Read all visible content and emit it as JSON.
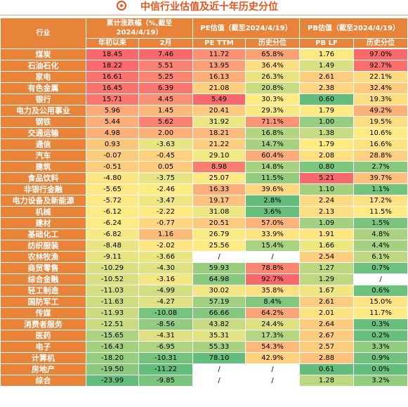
{
  "title": "中信行业估值及近十年历史分位",
  "headers": {
    "industry": "行业",
    "group_change": "累计涨跌幅（%,截至2024/4/19）",
    "group_pe": "PE估值（截至2024/4/19）",
    "group_pb": "PB估值（截至2024/4/19）",
    "sub": [
      "年初以来",
      "2月",
      "PE  TTM",
      "历史分位",
      "PB  LF",
      "历史分位"
    ]
  },
  "colors": {
    "header_bg": "#e8833a",
    "title_color": "#e8531c",
    "scale_red": "#f8696b",
    "scale_yellow": "#ffeb84",
    "scale_green": "#63be7b"
  },
  "chart_data": {
    "type": "table",
    "columns": [
      "行业",
      "年初以来",
      "2月",
      "PE TTM",
      "PE历史分位",
      "PB LF",
      "PB历史分位"
    ],
    "rows": [
      {
        "industry": "煤炭",
        "ytd": "18.45",
        "m2": "7.46",
        "pe": "11.72",
        "pe_pct": "65.8%",
        "pb": "1.76",
        "pb_pct": "97.0%"
      },
      {
        "industry": "石油石化",
        "ytd": "18.22",
        "m2": "5.51",
        "pe": "13.95",
        "pe_pct": "36.4%",
        "pb": "1.49",
        "pb_pct": "92.7%"
      },
      {
        "industry": "家电",
        "ytd": "16.61",
        "m2": "5.25",
        "pe": "16.13",
        "pe_pct": "26.3%",
        "pb": "2.61",
        "pb_pct": "22.1%"
      },
      {
        "industry": "有色金属",
        "ytd": "16.45",
        "m2": "6.39",
        "pe": "21.08",
        "pe_pct": "20.8%",
        "pb": "2.38",
        "pb_pct": "32.4%"
      },
      {
        "industry": "银行",
        "ytd": "15.71",
        "m2": "4.45",
        "pe": "5.49",
        "pe_pct": "30.3%",
        "pb": "0.60",
        "pb_pct": "19.3%"
      },
      {
        "industry": "电力及公用事业",
        "ytd": "5.96",
        "m2": "1.45",
        "pe": "20.41",
        "pe_pct": "29.3%",
        "pb": "1.79",
        "pb_pct": "49.2%"
      },
      {
        "industry": "钢铁",
        "ytd": "5.44",
        "m2": "5.62",
        "pe": "31.92",
        "pe_pct": "71.1%",
        "pb": "1.00",
        "pb_pct": "19.5%"
      },
      {
        "industry": "交通运输",
        "ytd": "4.98",
        "m2": "2.00",
        "pe": "18.21",
        "pe_pct": "16.8%",
        "pb": "1.38",
        "pb_pct": "10.6%"
      },
      {
        "industry": "通信",
        "ytd": "0.93",
        "m2": "-3.63",
        "pe": "21.22",
        "pe_pct": "14.7%",
        "pb": "1.79",
        "pb_pct": "16.6%"
      },
      {
        "industry": "汽车",
        "ytd": "-0.07",
        "m2": "-0.45",
        "pe": "29.10",
        "pe_pct": "60.4%",
        "pb": "2.08",
        "pb_pct": "28.8%"
      },
      {
        "industry": "建筑",
        "ytd": "-0.51",
        "m2": "0.05",
        "pe": "8.98",
        "pe_pct": "14.8%",
        "pb": "0.80",
        "pb_pct": "2.7%"
      },
      {
        "industry": "食品饮料",
        "ytd": "-4.80",
        "m2": "-3.75",
        "pe": "25.07",
        "pe_pct": "11.5%",
        "pb": "5.21",
        "pb_pct": "39.7%"
      },
      {
        "industry": "非银行金融",
        "ytd": "-5.65",
        "m2": "-2.46",
        "pe": "16.33",
        "pe_pct": "39.6%",
        "pb": "1.10",
        "pb_pct": "1.1%"
      },
      {
        "industry": "电力设备及新能源",
        "ytd": "-5.72",
        "m2": "-3.47",
        "pe": "19.17",
        "pe_pct": "2.8%",
        "pb": "2.24",
        "pb_pct": "17.2%"
      },
      {
        "industry": "机械",
        "ytd": "-6.12",
        "m2": "-2.22",
        "pe": "31.08",
        "pe_pct": "3.6%",
        "pb": "2.13",
        "pb_pct": "11.5%"
      },
      {
        "industry": "建材",
        "ytd": "-6.24",
        "m2": "-0.77",
        "pe": "20.51",
        "pe_pct": "57.0%",
        "pb": "1.09",
        "pb_pct": "1.5%"
      },
      {
        "industry": "基础化工",
        "ytd": "-6.82",
        "m2": "1.16",
        "pe": "26.79",
        "pe_pct": "33.9%",
        "pb": "1.91",
        "pb_pct": "4.8%"
      },
      {
        "industry": "纺织服装",
        "ytd": "-8.48",
        "m2": "-2.02",
        "pe": "25.56",
        "pe_pct": "15.4%",
        "pb": "1.66",
        "pb_pct": "4.4%"
      },
      {
        "industry": "农林牧渔",
        "ytd": "-9.11",
        "m2": "-3.66",
        "pe": "/",
        "pe_pct": "/",
        "pb": "2.54",
        "pb_pct": "6.1%"
      },
      {
        "industry": "商贸零售",
        "ytd": "-10.29",
        "m2": "-4.30",
        "pe": "59.93",
        "pe_pct": "78.8%",
        "pb": "1.27",
        "pb_pct": "0.7%"
      },
      {
        "industry": "综合金融",
        "ytd": "-10.52",
        "m2": "-3.16",
        "pe": "64.98",
        "pe_pct": "92.7%",
        "pb": "1.29",
        "pb_pct": "/"
      },
      {
        "industry": "轻工制造",
        "ytd": "-11.03",
        "m2": "-4.99",
        "pe": "30.02",
        "pe_pct": "35.8%",
        "pb": "1.67",
        "pb_pct": "0.6%"
      },
      {
        "industry": "国防军工",
        "ytd": "-11.63",
        "m2": "-4.27",
        "pe": "57.19",
        "pe_pct": "8.4%",
        "pb": "2.61",
        "pb_pct": "15.0%"
      },
      {
        "industry": "传媒",
        "ytd": "-11.93",
        "m2": "-10.08",
        "pe": "66.66",
        "pe_pct": "64.2%",
        "pb": "2.01",
        "pb_pct": "11.7%"
      },
      {
        "industry": "消费者服务",
        "ytd": "-12.51",
        "m2": "-8.56",
        "pe": "43.82",
        "pe_pct": "24.4%",
        "pb": "2.64",
        "pb_pct": "0.3%"
      },
      {
        "industry": "医药",
        "ytd": "-15.65",
        "m2": "-4.31",
        "pe": "35.31",
        "pe_pct": "17.3%",
        "pb": "2.67",
        "pb_pct": "0.2%"
      },
      {
        "industry": "电子",
        "ytd": "-16.43",
        "m2": "-6.95",
        "pe": "55.33",
        "pe_pct": "54.3%",
        "pb": "2.57",
        "pb_pct": "3.3%"
      },
      {
        "industry": "计算机",
        "ytd": "-18.20",
        "m2": "-10.31",
        "pe": "78.10",
        "pe_pct": "42.9%",
        "pb": "2.88",
        "pb_pct": "0.9%"
      },
      {
        "industry": "房地产",
        "ytd": "-19.50",
        "m2": "-11.22",
        "pe": "/",
        "pe_pct": "/",
        "pb": "0.61",
        "pb_pct": "0.0%"
      },
      {
        "industry": "综合",
        "ytd": "-23.99",
        "m2": "-9.85",
        "pe": "/",
        "pe_pct": "/",
        "pb": "1.28",
        "pb_pct": "3.2%"
      }
    ]
  }
}
